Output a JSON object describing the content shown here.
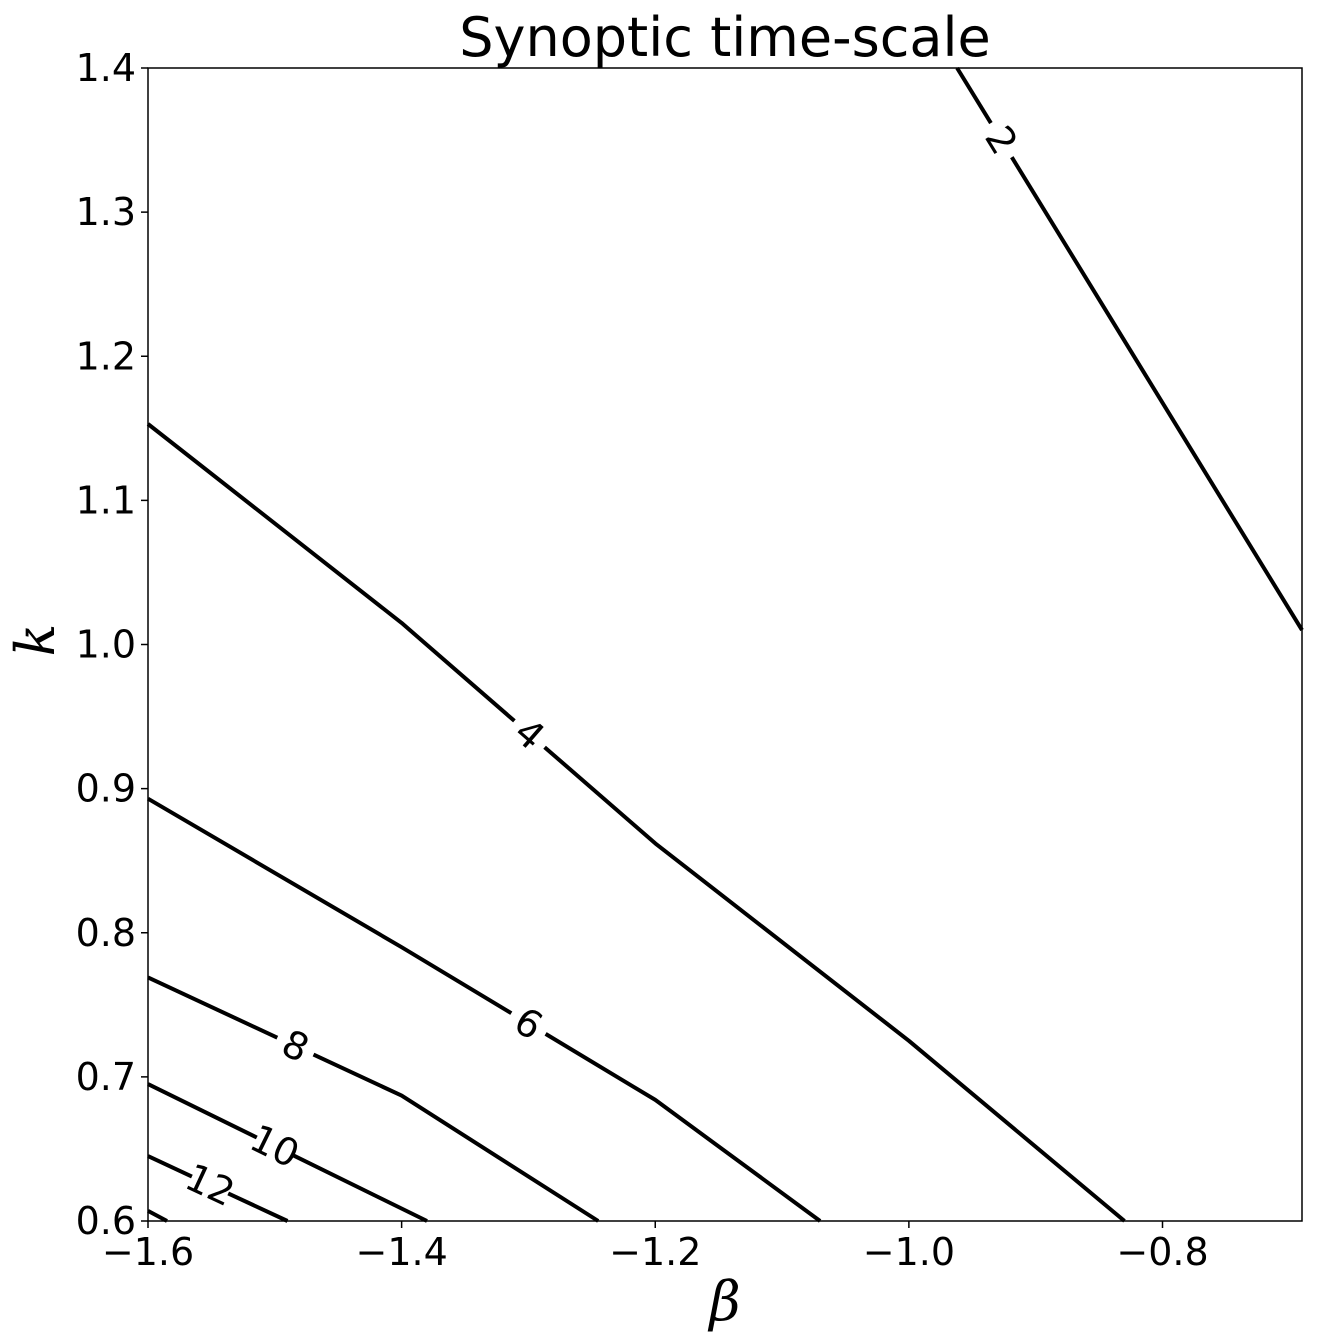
{
  "chart_data": {
    "type": "contour",
    "title": "Synoptic time-scale",
    "xlabel": "β",
    "ylabel": "k",
    "xlim": [
      -1.6,
      -0.69
    ],
    "ylim": [
      0.6,
      1.4
    ],
    "xticks": [
      {
        "value": -1.6,
        "label": "−1.6"
      },
      {
        "value": -1.4,
        "label": "−1.4"
      },
      {
        "value": -1.2,
        "label": "−1.2"
      },
      {
        "value": -1.0,
        "label": "−1.0"
      },
      {
        "value": -0.8,
        "label": "−0.8"
      }
    ],
    "yticks": [
      {
        "value": 0.6,
        "label": "0.6"
      },
      {
        "value": 0.7,
        "label": "0.7"
      },
      {
        "value": 0.8,
        "label": "0.8"
      },
      {
        "value": 0.9,
        "label": "0.9"
      },
      {
        "value": 1.0,
        "label": "1.0"
      },
      {
        "value": 1.1,
        "label": "1.1"
      },
      {
        "value": 1.2,
        "label": "1.2"
      },
      {
        "value": 1.3,
        "label": "1.3"
      },
      {
        "value": 1.4,
        "label": "1.4"
      }
    ],
    "grid": false,
    "line_color": "#000000",
    "contours": [
      {
        "level": 2,
        "label": "2",
        "points": [
          [
            -0.962,
            1.4
          ],
          [
            -0.69,
            1.01
          ]
        ],
        "label_at": [
          -0.927,
          1.35
        ]
      },
      {
        "level": 4,
        "label": "4",
        "points": [
          [
            -1.6,
            1.153
          ],
          [
            -1.4,
            1.015
          ],
          [
            -1.2,
            0.862
          ],
          [
            -1.0,
            0.725
          ],
          [
            -0.83,
            0.6
          ]
        ],
        "label_at": [
          -1.3,
          0.937
        ]
      },
      {
        "level": 6,
        "label": "6",
        "points": [
          [
            -1.6,
            0.893
          ],
          [
            -1.4,
            0.79
          ],
          [
            -1.2,
            0.684
          ],
          [
            -1.07,
            0.6
          ]
        ],
        "label_at": [
          -1.3,
          0.737
        ]
      },
      {
        "level": 8,
        "label": "8",
        "points": [
          [
            -1.6,
            0.769
          ],
          [
            -1.4,
            0.687
          ],
          [
            -1.245,
            0.6
          ]
        ],
        "label_at": [
          -1.485,
          0.719
        ]
      },
      {
        "level": 10,
        "label": "10",
        "points": [
          [
            -1.6,
            0.695
          ],
          [
            -1.38,
            0.6
          ]
        ],
        "label_at": [
          -1.5,
          0.652
        ]
      },
      {
        "level": 12,
        "label": "12",
        "points": [
          [
            -1.6,
            0.645
          ],
          [
            -1.49,
            0.6
          ]
        ],
        "label_at": [
          -1.55,
          0.627
        ]
      },
      {
        "level": 14,
        "points": [
          [
            -1.6,
            0.607
          ],
          [
            -1.585,
            0.6
          ]
        ]
      }
    ]
  }
}
